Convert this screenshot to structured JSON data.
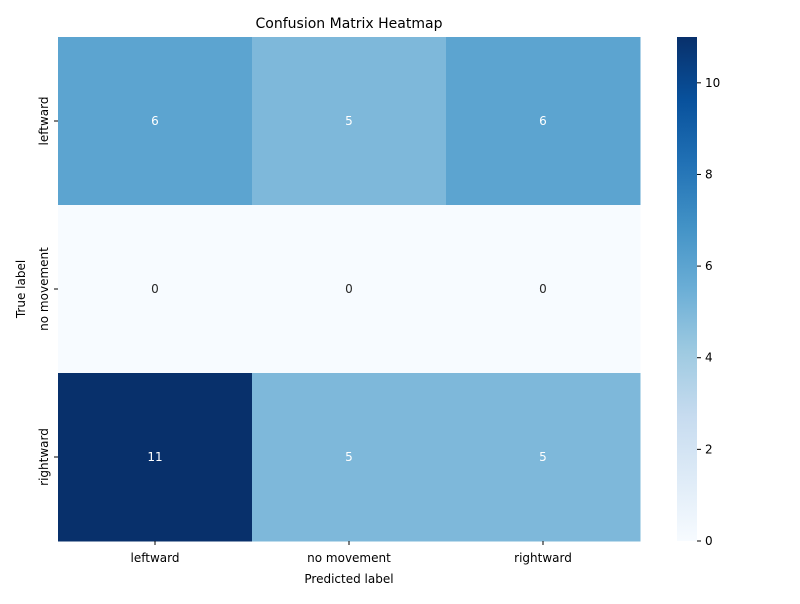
{
  "chart_data": {
    "type": "heatmap",
    "title": "Confusion Matrix Heatmap",
    "xlabel": "Predicted label",
    "ylabel": "True label",
    "x_categories": [
      "leftward",
      "no movement",
      "rightward"
    ],
    "y_categories": [
      "leftward",
      "no movement",
      "rightward"
    ],
    "values": [
      [
        6,
        5,
        6
      ],
      [
        0,
        0,
        0
      ],
      [
        11,
        5,
        5
      ]
    ],
    "colormap": "Blues",
    "vmin": 0,
    "vmax": 11,
    "colorbar_ticks": [
      0,
      2,
      4,
      6,
      8,
      10
    ],
    "annotations": true
  }
}
